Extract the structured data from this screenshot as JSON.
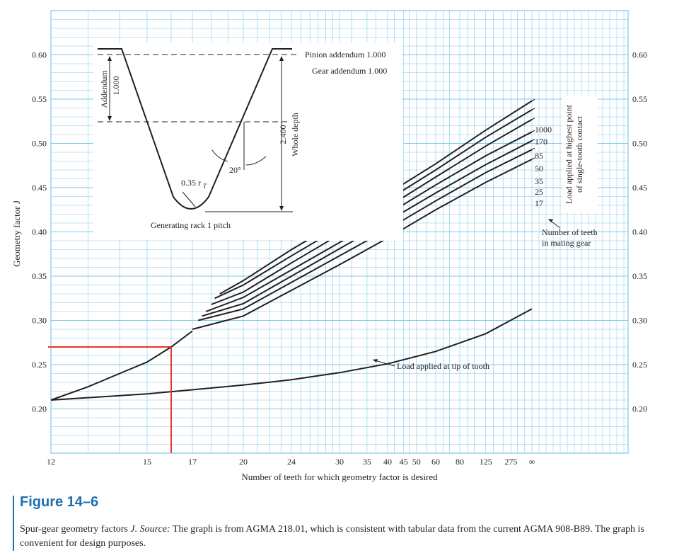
{
  "chart_data": {
    "type": "line",
    "xlabel": "Number of teeth for which geometry factor is desired",
    "ylabel": "Geometry factor J",
    "ylim": [
      0.15,
      0.65
    ],
    "x_scale": "reciprocal",
    "x_tick_labels": [
      "12",
      "15",
      "17",
      "20",
      "24",
      "30",
      "35",
      "40",
      "45",
      "50",
      "60",
      "80",
      "125",
      "275",
      "∞"
    ],
    "y_tick_labels": [
      "0.20",
      "0.25",
      "0.30",
      "0.35",
      "0.40",
      "0.45",
      "0.50",
      "0.55",
      "0.60"
    ],
    "grid": true,
    "base_curve": {
      "x": [
        12,
        13,
        14,
        15,
        16,
        17
      ],
      "y": [
        0.21,
        0.225,
        0.24,
        0.253,
        0.27,
        0.288
      ]
    },
    "series": [
      {
        "name": "1000",
        "x": [
          18.5,
          20,
          24,
          30,
          40,
          60,
          125,
          "∞"
        ],
        "y": [
          0.33,
          0.345,
          0.38,
          0.412,
          0.443,
          0.477,
          0.515,
          0.548
        ]
      },
      {
        "name": "170",
        "x": [
          18.2,
          20,
          24,
          30,
          40,
          60,
          125,
          "∞"
        ],
        "y": [
          0.325,
          0.34,
          0.373,
          0.405,
          0.436,
          0.47,
          0.507,
          0.538
        ]
      },
      {
        "name": "85",
        "x": [
          18,
          20,
          24,
          30,
          40,
          60,
          125,
          "∞"
        ],
        "y": [
          0.318,
          0.332,
          0.365,
          0.397,
          0.428,
          0.462,
          0.497,
          0.527
        ]
      },
      {
        "name": "50",
        "x": [
          17.7,
          20,
          24,
          30,
          40,
          60,
          125,
          "∞"
        ],
        "y": [
          0.31,
          0.326,
          0.357,
          0.388,
          0.42,
          0.453,
          0.486,
          0.513
        ]
      },
      {
        "name": "35",
        "x": [
          17.5,
          20,
          24,
          30,
          40,
          60,
          125,
          "∞"
        ],
        "y": [
          0.305,
          0.319,
          0.35,
          0.381,
          0.412,
          0.444,
          0.476,
          0.503
        ]
      },
      {
        "name": "25",
        "x": [
          17.3,
          20,
          24,
          30,
          40,
          60,
          125,
          "∞"
        ],
        "y": [
          0.3,
          0.313,
          0.343,
          0.373,
          0.403,
          0.435,
          0.467,
          0.493
        ]
      },
      {
        "name": "17",
        "x": [
          17,
          20,
          24,
          30,
          40,
          60,
          125,
          "∞"
        ],
        "y": [
          0.29,
          0.305,
          0.334,
          0.363,
          0.393,
          0.425,
          0.456,
          0.482
        ]
      }
    ],
    "tip_line": {
      "x": [
        12,
        15,
        20,
        24,
        30,
        40,
        60,
        125,
        "∞"
      ],
      "y": [
        0.21,
        0.217,
        0.227,
        0.233,
        0.241,
        0.251,
        0.265,
        0.285,
        0.313
      ]
    },
    "highlight": {
      "x": 16,
      "y": 0.27,
      "color": "#e8322b"
    },
    "annotations": {
      "tip_label": "Load applied at tip of tooth",
      "hpstc_line1": "Load applied at highest point",
      "hpstc_line2": "of single-tooth contact",
      "mating_line1": "Number of teeth",
      "mating_line2": "in mating gear"
    },
    "inset": {
      "pinion_addendum": "Pinion addendum 1.000",
      "gear_addendum": "Gear addendum 1.000",
      "addendum_label": "Addendum",
      "addendum_value": "1.000",
      "whole_depth_value": "2.400",
      "whole_depth_label": "Whole depth",
      "angle": "20°",
      "fillet": "0.35 r",
      "fillet_subscript": "T",
      "caption": "Generating rack 1 pitch"
    },
    "colors": {
      "grid": "#7ec8ec",
      "curve": "#231f20",
      "highlight": "#e8322b",
      "accent": "#1f6fae"
    }
  },
  "figure": {
    "label": "Figure 14–6",
    "caption_italic_1": "Spur-gear geometry factors ",
    "caption_j": "J.",
    "caption_source": " Source:",
    "caption_rest": " The graph is from AGMA 218.01, which is consistent with tabular data from the current AGMA 908-B89. The graph is convenient for design purposes."
  }
}
